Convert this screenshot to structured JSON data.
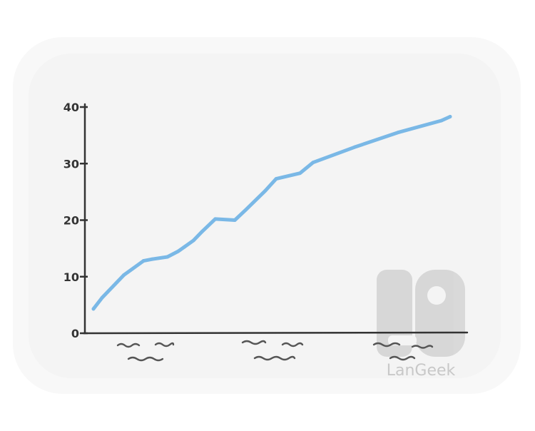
{
  "chart_data": {
    "type": "line",
    "title": "",
    "xlabel": "",
    "ylabel": "",
    "ylim": [
      0,
      40
    ],
    "y_ticks": [
      "0",
      "10",
      "20",
      "30",
      "40"
    ],
    "x_tick_labels": [
      "",
      "",
      ""
    ],
    "grid": false,
    "legend": "none",
    "series": [
      {
        "color": "#7ab8e6",
        "points": [
          [
            0.0,
            4.3
          ],
          [
            0.02,
            6.3
          ],
          [
            0.07,
            10.3
          ],
          [
            0.115,
            12.8
          ],
          [
            0.135,
            13.1
          ],
          [
            0.17,
            13.5
          ],
          [
            0.195,
            14.5
          ],
          [
            0.21,
            15.3
          ],
          [
            0.23,
            16.4
          ],
          [
            0.25,
            18.0
          ],
          [
            0.28,
            20.2
          ],
          [
            0.325,
            20.0
          ],
          [
            0.35,
            21.8
          ],
          [
            0.395,
            25.2
          ],
          [
            0.42,
            27.3
          ],
          [
            0.475,
            28.3
          ],
          [
            0.505,
            30.2
          ],
          [
            0.6,
            32.9
          ],
          [
            0.7,
            35.5
          ],
          [
            0.8,
            37.6
          ],
          [
            0.82,
            38.3
          ]
        ]
      }
    ]
  },
  "watermark": {
    "brand": "LanGeek",
    "logo_color": "#c8c8c8"
  },
  "colors": {
    "panel": "#f4f4f4",
    "axis": "#333333",
    "line": "#7ab8e6"
  }
}
